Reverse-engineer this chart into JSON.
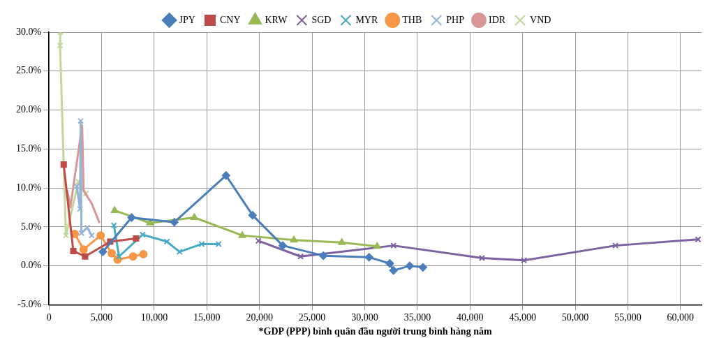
{
  "chart_data": {
    "type": "line",
    "xlabel": "*GDP (PPP) bình quân đầu người trung bình hàng năm",
    "legend": "top",
    "grid": true,
    "xlim": [
      0,
      62000
    ],
    "xticks": [
      0,
      {
        "value": 5000,
        "label": "5,000"
      },
      {
        "value": 10000,
        "label": "10,000"
      },
      {
        "value": 15000,
        "label": "15,000"
      },
      {
        "value": 20000,
        "label": "20,000"
      },
      {
        "value": 25000,
        "label": "25,000"
      },
      {
        "value": 30000,
        "label": "30,000"
      },
      {
        "value": 35000,
        "label": "35,000"
      },
      {
        "value": 40000,
        "label": "40,000"
      },
      {
        "value": 45000,
        "label": "45,000"
      },
      {
        "value": 50000,
        "label": "50,000"
      },
      {
        "value": 55000,
        "label": "55,000"
      },
      {
        "value": 60000,
        "label": "60,000"
      }
    ],
    "ylim": [
      -5,
      30
    ],
    "yticks": [
      {
        "value": -5,
        "label": "-5.0%"
      },
      {
        "value": 0,
        "label": "0.0%"
      },
      {
        "value": 5,
        "label": "5.0%"
      },
      {
        "value": 10,
        "label": "10.0%"
      },
      {
        "value": 15,
        "label": "15.0%"
      },
      {
        "value": 20,
        "label": "20.0%"
      },
      {
        "value": 25,
        "label": "25.0%"
      },
      {
        "value": 30,
        "label": "30.0%"
      }
    ],
    "series": [
      {
        "name": "JPY",
        "color": "#4a7ebb",
        "marker": "diamond",
        "x": [
          5120,
          7850,
          11910,
          16820,
          19340,
          22210,
          26070,
          30410,
          32380,
          32730,
          34270,
          35530
        ],
        "values": [
          1.8,
          6.2,
          5.6,
          11.6,
          6.5,
          2.6,
          1.3,
          1.1,
          0.3,
          -0.6,
          0,
          -0.2
        ]
      },
      {
        "name": "CNY",
        "color": "#be4b48",
        "marker": "square",
        "x": [
          1400,
          2310,
          3430,
          5820,
          8270
        ],
        "values": [
          13.0,
          1.9,
          1.2,
          3.1,
          3.5
        ]
      },
      {
        "name": "KRW",
        "color": "#98b954",
        "marker": "triangle",
        "x": [
          6240,
          9600,
          13810,
          18360,
          23270,
          27820,
          31180
        ],
        "values": [
          7.1,
          5.5,
          6.2,
          3.9,
          3.3,
          3.0,
          2.5
        ]
      },
      {
        "name": "SGD",
        "color": "#7d60a0",
        "marker": "cross",
        "x": [
          19900,
          23900,
          32730,
          41140,
          45130,
          53820,
          61670
        ],
        "values": [
          3.2,
          1.2,
          2.6,
          1.0,
          0.7,
          2.6,
          3.4
        ]
      },
      {
        "name": "MYR",
        "color": "#46aac5",
        "marker": "cross",
        "x": [
          6170,
          6660,
          8900,
          11210,
          12400,
          14510,
          16120
        ],
        "values": [
          5.2,
          1.2,
          4.0,
          3.1,
          1.8,
          2.8,
          2.8
        ]
      },
      {
        "name": "THB",
        "color": "#f79646",
        "marker": "circle",
        "x": [
          2450,
          3290,
          4910,
          5960,
          6520,
          7990,
          8970
        ],
        "values": [
          4.1,
          2.1,
          3.9,
          1.6,
          0.8,
          1.2,
          1.5
        ]
      },
      {
        "name": "PHP",
        "color": "#95b3d7",
        "marker": "cross",
        "x": [
          2650,
          2950,
          3010,
          3080,
          3640,
          4060
        ],
        "values": [
          10.2,
          7.3,
          18.6,
          4.2,
          4.9,
          3.9
        ]
      },
      {
        "name": "IDR",
        "color": "#d99694",
        "marker": "none",
        "x": [
          1750,
          2030,
          3150,
          3290,
          4060,
          4770
        ],
        "values": [
          9.6,
          7.5,
          18.0,
          9.6,
          8.0,
          5.6
        ]
      },
      {
        "name": "VND",
        "color": "#c3d69b",
        "marker": "cross",
        "x": [
          1080,
          1050,
          1610,
          2800,
          3500
        ],
        "values": [
          30.0,
          28.3,
          3.9,
          10.8,
          9.3
        ]
      }
    ]
  }
}
